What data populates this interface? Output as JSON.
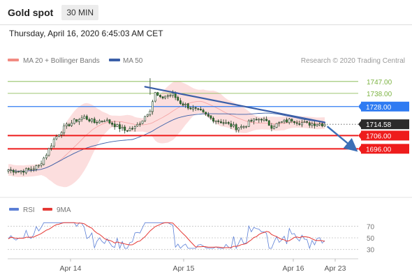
{
  "header": {
    "title": "Gold spot",
    "timeframe": "30 MIN",
    "datetime": "Thursday, April 16, 2020 6:45:03 AM CET",
    "credit": "Research © 2020 Trading Central"
  },
  "chart_data": [
    {
      "type": "candlestick",
      "title": "Gold spot",
      "legend": [
        {
          "name": "MA 20 + Bollinger Bands",
          "color": "#f28b82"
        },
        {
          "name": "MA 50",
          "color": "#3b5fa8"
        }
      ],
      "x_ticks": [
        "Apr 14",
        "Apr 15",
        "Apr 16",
        "Apr 23"
      ],
      "ylim": [
        1665,
        1758
      ],
      "levels": [
        {
          "value": 1747.0,
          "label": "1747.00",
          "kind": "resistance",
          "color": "#7cb342"
        },
        {
          "value": 1738.0,
          "label": "1738.00",
          "kind": "resistance",
          "color": "#7cb342"
        },
        {
          "value": 1728.0,
          "label": "1728.00",
          "kind": "pivot",
          "color": "#2f7bf2"
        },
        {
          "value": 1714.58,
          "label": "1714.58",
          "kind": "last",
          "color": "#222222"
        },
        {
          "value": 1706.0,
          "label": "1706.00",
          "kind": "support",
          "color": "#ee1c1c"
        },
        {
          "value": 1696.0,
          "label": "1696.00",
          "kind": "support",
          "color": "#ee1c1c"
        }
      ],
      "close_path": [
        [
          0,
          1680
        ],
        [
          4,
          1679
        ],
        [
          8,
          1680
        ],
        [
          12,
          1683
        ],
        [
          15,
          1692
        ],
        [
          18,
          1703
        ],
        [
          22,
          1712
        ],
        [
          26,
          1717
        ],
        [
          30,
          1720
        ],
        [
          34,
          1716
        ],
        [
          38,
          1718
        ],
        [
          42,
          1714
        ],
        [
          46,
          1710
        ],
        [
          50,
          1712
        ],
        [
          53,
          1718
        ],
        [
          56,
          1726
        ],
        [
          58,
          1738
        ],
        [
          60,
          1734
        ],
        [
          62,
          1736
        ],
        [
          65,
          1737
        ],
        [
          68,
          1731
        ],
        [
          72,
          1727
        ],
        [
          76,
          1724
        ],
        [
          80,
          1719
        ],
        [
          85,
          1716
        ],
        [
          90,
          1712
        ],
        [
          93,
          1713
        ],
        [
          96,
          1717
        ],
        [
          100,
          1719
        ],
        [
          104,
          1713
        ],
        [
          108,
          1716
        ],
        [
          112,
          1718
        ],
        [
          115,
          1716
        ],
        [
          118,
          1715
        ],
        [
          122,
          1715
        ],
        [
          125,
          1714.58
        ]
      ],
      "trendline": {
        "from": [
          54,
          1743
        ],
        "to": [
          125,
          1716
        ],
        "color": "#3b5fa8"
      },
      "forecast_arrow": {
        "from": [
          126,
          1713
        ],
        "to": [
          138,
          1696
        ],
        "color": "#3b6fb6"
      }
    },
    {
      "type": "line",
      "legend": [
        {
          "name": "RSI",
          "color": "#5b7fd6"
        },
        {
          "name": "9MA",
          "color": "#e53935"
        }
      ],
      "y_ticks": [
        70,
        50,
        30
      ],
      "ylim": [
        20,
        80
      ]
    }
  ]
}
